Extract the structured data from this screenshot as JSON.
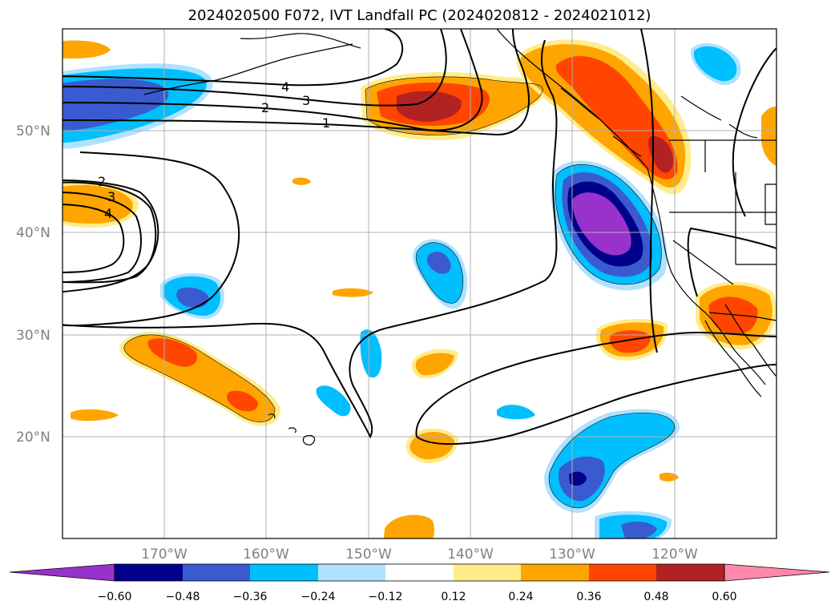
{
  "title": "2024020500 F072, IVT Landfall PC (2024020812 - 2024021012)",
  "axes": {
    "lat_labels": [
      "50°N",
      "40°N",
      "30°N",
      "20°N"
    ],
    "lon_labels": [
      "170°W",
      "160°W",
      "150°W",
      "140°W",
      "130°W",
      "120°W"
    ]
  },
  "colorbar": {
    "ticks": [
      "−0.60",
      "−0.48",
      "−0.36",
      "−0.24",
      "−0.12",
      "0.12",
      "0.24",
      "0.36",
      "0.48",
      "0.60"
    ],
    "colors": [
      "#9932cc",
      "#00008b",
      "#3a5bd0",
      "#00bfff",
      "#b0e2ff",
      "#ffffff",
      "#ffec8b",
      "#ffa500",
      "#ff4500",
      "#b22222",
      "#ff88aa"
    ]
  },
  "contour_labels": [
    {
      "id": "c4-north",
      "text": "4"
    },
    {
      "id": "c3-north",
      "text": "3"
    },
    {
      "id": "c2-north",
      "text": "2"
    },
    {
      "id": "c1-north",
      "text": "1"
    },
    {
      "id": "c2-west",
      "text": "2"
    },
    {
      "id": "c3-west",
      "text": "3"
    },
    {
      "id": "c4-west",
      "text": "4"
    }
  ],
  "colors": {
    "shade_purple": "#9932cc",
    "shade_navy": "#00008b",
    "shade_blue": "#3a5bd0",
    "shade_sky": "#00bfff",
    "shade_light": "#b0e2ff",
    "shade_yellow": "#ffec8b",
    "shade_orange": "#ffa500",
    "shade_red": "#ff4500",
    "shade_darkred": "#b22222",
    "shade_pink": "#ff88aa"
  }
}
